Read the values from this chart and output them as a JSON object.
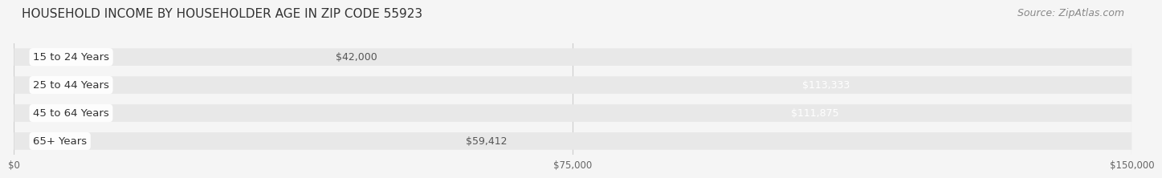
{
  "title": "HOUSEHOLD INCOME BY HOUSEHOLDER AGE IN ZIP CODE 55923",
  "source": "Source: ZipAtlas.com",
  "categories": [
    "15 to 24 Years",
    "25 to 44 Years",
    "45 to 64 Years",
    "65+ Years"
  ],
  "values": [
    42000,
    113333,
    111875,
    59412
  ],
  "bar_colors": [
    "#b3b7e0",
    "#f06292",
    "#f5a74d",
    "#f4a49a"
  ],
  "label_colors": [
    "#555555",
    "#ffffff",
    "#ffffff",
    "#555555"
  ],
  "value_labels": [
    "$42,000",
    "$113,333",
    "$111,875",
    "$59,412"
  ],
  "xmax": 150000,
  "xticks": [
    0,
    75000,
    150000
  ],
  "xtick_labels": [
    "$0",
    "$75,000",
    "$150,000"
  ],
  "background_color": "#f5f5f5",
  "bar_bg_color": "#e8e8e8",
  "title_fontsize": 11,
  "source_fontsize": 9,
  "label_fontsize": 9.5,
  "value_fontsize": 9
}
